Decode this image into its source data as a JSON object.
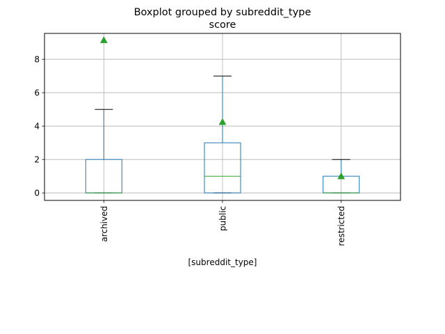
{
  "chart_data": {
    "type": "box",
    "title": "Boxplot grouped by subreddit_type",
    "subtitle": "score",
    "xlabel": "[subreddit_type]",
    "ylabel": "",
    "categories": [
      "archived",
      "public",
      "restricted"
    ],
    "ylim": [
      -0.45,
      9.55
    ],
    "yticks": [
      0,
      2,
      4,
      6,
      8
    ],
    "grid": true,
    "boxes": [
      {
        "category": "archived",
        "whisker_low": 0,
        "q1": 0,
        "median": 0,
        "q3": 2,
        "whisker_high": 5,
        "mean": 9.15
      },
      {
        "category": "public",
        "whisker_low": 0,
        "q1": 0,
        "median": 1,
        "q3": 3,
        "whisker_high": 7,
        "mean": 4.25
      },
      {
        "category": "restricted",
        "whisker_low": 0,
        "q1": 0,
        "median": 0,
        "q3": 1,
        "whisker_high": 2,
        "mean": 1.0
      }
    ],
    "colors": {
      "box": "#1f77b4",
      "median": "#2ca02c",
      "mean": "#2ca02c",
      "cap": "#000000",
      "grid": "#b0b0b0",
      "axis": "#000000"
    }
  }
}
